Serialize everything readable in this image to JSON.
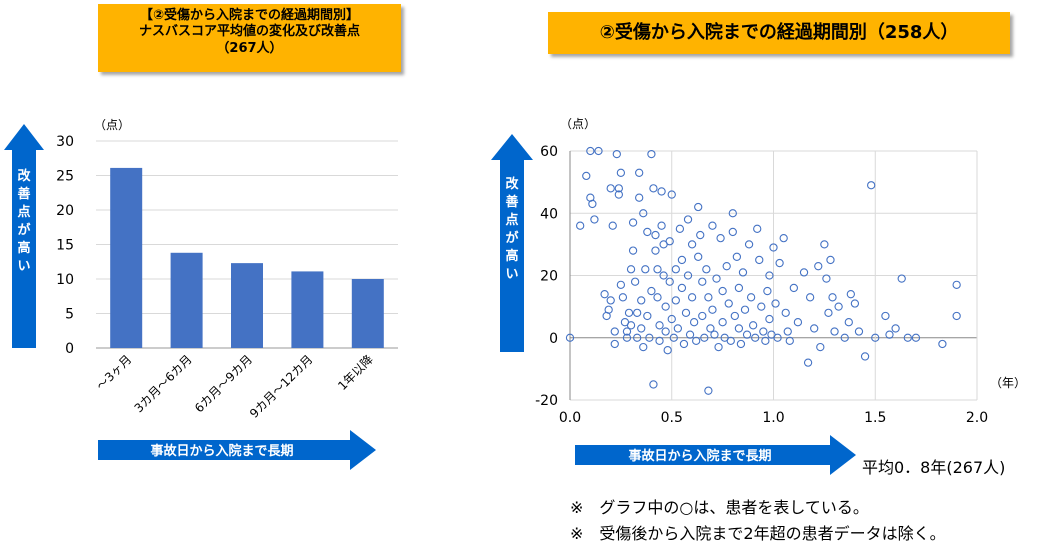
{
  "left_title": {
    "line1": "【②受傷から入院までの経過期間別】",
    "line2": "ナスバスコア平均値の変化及び改善点",
    "line3": "（267人）"
  },
  "right_title": "②受傷から入院までの経過期間別（258人）",
  "left_vertical_arrow_label": [
    "改",
    "善",
    "点",
    "が",
    "高",
    "い"
  ],
  "right_vertical_arrow_label": [
    "改",
    "善",
    "点",
    "が",
    "高",
    "い"
  ],
  "left_horizontal_arrow_label": "事故日から入院まで長期",
  "right_horizontal_arrow_label": "事故日から入院まで長期",
  "average_note": "平均0．8年(267人)",
  "notes": [
    "※　グラフ中の○は、患者を表している。",
    "※　受傷後から入院まで2年超の患者データは除く。"
  ],
  "colors": {
    "bar": "#4472c4",
    "arrow": "#0066cc",
    "title_bg": "#ffb300",
    "marker": "#4472c4"
  },
  "chart_data": [
    {
      "type": "bar",
      "unit_label": "（点）",
      "categories": [
        "～3ヶ月",
        "3カ月～6カ月",
        "6カ月～9カ月",
        "9カ月～12カ月",
        "1年以降"
      ],
      "values": [
        26.1,
        13.8,
        12.3,
        11.1,
        10.0
      ],
      "ylim": [
        0,
        30
      ],
      "yticks": [
        0,
        5,
        10,
        15,
        20,
        25,
        30
      ],
      "grid": true
    },
    {
      "type": "scatter",
      "unit_label": "（点）",
      "x_unit_label": "（年）",
      "xlim": [
        0,
        2.0
      ],
      "ylim": [
        -20,
        60
      ],
      "xticks": [
        "0.0",
        "0.5",
        "1.0",
        "1.5",
        "2.0"
      ],
      "yticks": [
        -20,
        0,
        20,
        40,
        60
      ],
      "grid": true,
      "points": [
        [
          0.0,
          0
        ],
        [
          0.05,
          36
        ],
        [
          0.08,
          52
        ],
        [
          0.1,
          60
        ],
        [
          0.1,
          45
        ],
        [
          0.12,
          38
        ],
        [
          0.11,
          43
        ],
        [
          0.14,
          60
        ],
        [
          0.17,
          14
        ],
        [
          0.18,
          7
        ],
        [
          0.19,
          9
        ],
        [
          0.2,
          48
        ],
        [
          0.21,
          36
        ],
        [
          0.2,
          12
        ],
        [
          0.22,
          2
        ],
        [
          0.22,
          -2
        ],
        [
          0.23,
          59
        ],
        [
          0.24,
          48
        ],
        [
          0.24,
          46
        ],
        [
          0.25,
          53
        ],
        [
          0.25,
          17
        ],
        [
          0.26,
          13
        ],
        [
          0.27,
          5
        ],
        [
          0.28,
          2
        ],
        [
          0.28,
          0
        ],
        [
          0.29,
          8
        ],
        [
          0.3,
          22
        ],
        [
          0.3,
          4
        ],
        [
          0.31,
          37
        ],
        [
          0.31,
          28
        ],
        [
          0.32,
          18
        ],
        [
          0.33,
          8
        ],
        [
          0.33,
          0
        ],
        [
          0.34,
          53
        ],
        [
          0.34,
          45
        ],
        [
          0.35,
          12
        ],
        [
          0.35,
          3
        ],
        [
          0.36,
          -3
        ],
        [
          0.36,
          40
        ],
        [
          0.37,
          22
        ],
        [
          0.38,
          34
        ],
        [
          0.38,
          7
        ],
        [
          0.39,
          0
        ],
        [
          0.4,
          59
        ],
        [
          0.4,
          15
        ],
        [
          0.41,
          48
        ],
        [
          0.41,
          -15
        ],
        [
          0.42,
          33
        ],
        [
          0.42,
          28
        ],
        [
          0.43,
          22
        ],
        [
          0.43,
          13
        ],
        [
          0.44,
          4
        ],
        [
          0.44,
          -1
        ],
        [
          0.45,
          47
        ],
        [
          0.45,
          36
        ],
        [
          0.46,
          30
        ],
        [
          0.46,
          20
        ],
        [
          0.47,
          10
        ],
        [
          0.47,
          2
        ],
        [
          0.48,
          -4
        ],
        [
          0.49,
          31
        ],
        [
          0.49,
          18
        ],
        [
          0.5,
          46
        ],
        [
          0.5,
          6
        ],
        [
          0.51,
          0
        ],
        [
          0.52,
          22
        ],
        [
          0.52,
          12
        ],
        [
          0.53,
          3
        ],
        [
          0.54,
          35
        ],
        [
          0.55,
          25
        ],
        [
          0.55,
          16
        ],
        [
          0.56,
          -2
        ],
        [
          0.57,
          8
        ],
        [
          0.58,
          38
        ],
        [
          0.58,
          20
        ],
        [
          0.59,
          1
        ],
        [
          0.6,
          30
        ],
        [
          0.6,
          13
        ],
        [
          0.61,
          5
        ],
        [
          0.62,
          -1
        ],
        [
          0.63,
          26
        ],
        [
          0.63,
          42
        ],
        [
          0.64,
          33
        ],
        [
          0.65,
          18
        ],
        [
          0.65,
          7
        ],
        [
          0.66,
          0
        ],
        [
          0.67,
          22
        ],
        [
          0.68,
          -17
        ],
        [
          0.68,
          13
        ],
        [
          0.69,
          3
        ],
        [
          0.7,
          36
        ],
        [
          0.7,
          9
        ],
        [
          0.71,
          1
        ],
        [
          0.72,
          19
        ],
        [
          0.73,
          -3
        ],
        [
          0.74,
          32
        ],
        [
          0.75,
          15
        ],
        [
          0.75,
          5
        ],
        [
          0.76,
          0
        ],
        [
          0.77,
          23
        ],
        [
          0.78,
          11
        ],
        [
          0.79,
          -1
        ],
        [
          0.8,
          40
        ],
        [
          0.8,
          34
        ],
        [
          0.81,
          7
        ],
        [
          0.82,
          26
        ],
        [
          0.83,
          16
        ],
        [
          0.83,
          3
        ],
        [
          0.84,
          -2
        ],
        [
          0.85,
          21
        ],
        [
          0.86,
          9
        ],
        [
          0.87,
          1
        ],
        [
          0.88,
          30
        ],
        [
          0.89,
          13
        ],
        [
          0.9,
          4
        ],
        [
          0.91,
          0
        ],
        [
          0.92,
          35
        ],
        [
          0.93,
          25
        ],
        [
          0.94,
          10
        ],
        [
          0.95,
          2
        ],
        [
          0.96,
          -1
        ],
        [
          0.97,
          15
        ],
        [
          0.98,
          20
        ],
        [
          0.98,
          6
        ],
        [
          0.99,
          1
        ],
        [
          1.0,
          29
        ],
        [
          1.01,
          11
        ],
        [
          1.02,
          0
        ],
        [
          1.03,
          24
        ],
        [
          1.05,
          32
        ],
        [
          1.06,
          8
        ],
        [
          1.07,
          2
        ],
        [
          1.08,
          -1
        ],
        [
          1.1,
          16
        ],
        [
          1.12,
          5
        ],
        [
          1.15,
          21
        ],
        [
          1.17,
          -8
        ],
        [
          1.18,
          13
        ],
        [
          1.2,
          3
        ],
        [
          1.22,
          23
        ],
        [
          1.23,
          -3
        ],
        [
          1.25,
          30
        ],
        [
          1.26,
          19
        ],
        [
          1.27,
          8
        ],
        [
          1.28,
          25
        ],
        [
          1.29,
          13
        ],
        [
          1.3,
          2
        ],
        [
          1.32,
          10
        ],
        [
          1.35,
          0
        ],
        [
          1.37,
          5
        ],
        [
          1.38,
          14
        ],
        [
          1.4,
          11
        ],
        [
          1.42,
          2
        ],
        [
          1.45,
          -6
        ],
        [
          1.48,
          49
        ],
        [
          1.5,
          0
        ],
        [
          1.55,
          7
        ],
        [
          1.57,
          1
        ],
        [
          1.6,
          3
        ],
        [
          1.63,
          19
        ],
        [
          1.66,
          0
        ],
        [
          1.7,
          0
        ],
        [
          1.83,
          -2
        ],
        [
          1.9,
          17
        ],
        [
          1.9,
          7
        ]
      ]
    }
  ]
}
